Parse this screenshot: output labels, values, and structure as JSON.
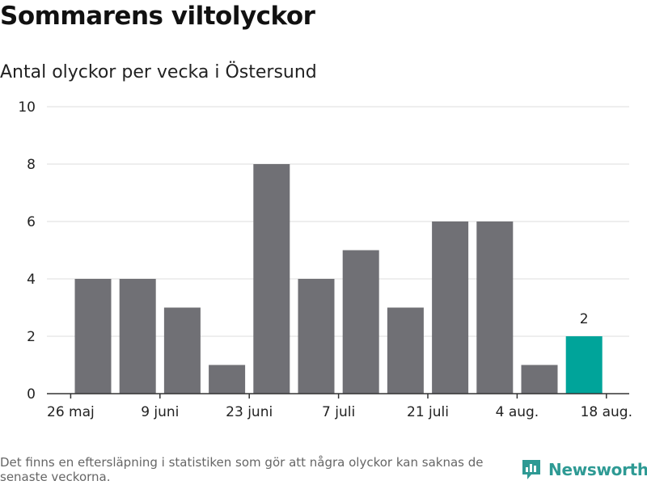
{
  "title": "Sommarens viltolyckor",
  "subtitle": "Antal olyckor per vecka i Östersund",
  "footnote": "Det finns en eftersläpning i statistiken som gör att några olyckor kan saknas de senaste veckorna.",
  "brand": {
    "name": "Newsworthy",
    "icon": "newsworthy-logo-icon"
  },
  "colors": {
    "bar": "#707075",
    "highlight": "#00a49a",
    "grid": "#dddddd",
    "axis": "#333333",
    "text": "#222222"
  },
  "chart_data": {
    "type": "bar",
    "ylim": [
      0,
      10
    ],
    "yticks": [
      0,
      2,
      4,
      6,
      8,
      10
    ],
    "xtick_labels": [
      {
        "label": "26 maj",
        "index": -0.5
      },
      {
        "label": "9 juni",
        "index": 1.5
      },
      {
        "label": "23 juni",
        "index": 3.5
      },
      {
        "label": "7 juli",
        "index": 5.5
      },
      {
        "label": "21 juli",
        "index": 7.5
      },
      {
        "label": "4 aug.",
        "index": 9.5
      },
      {
        "label": "18 aug.",
        "index": 11.5
      }
    ],
    "values": [
      4,
      4,
      3,
      1,
      8,
      4,
      5,
      3,
      6,
      6,
      1,
      2
    ],
    "highlight_index": 11,
    "data_labels": [
      {
        "index": 11,
        "label": "2"
      }
    ],
    "grid": true,
    "legend": "none"
  }
}
